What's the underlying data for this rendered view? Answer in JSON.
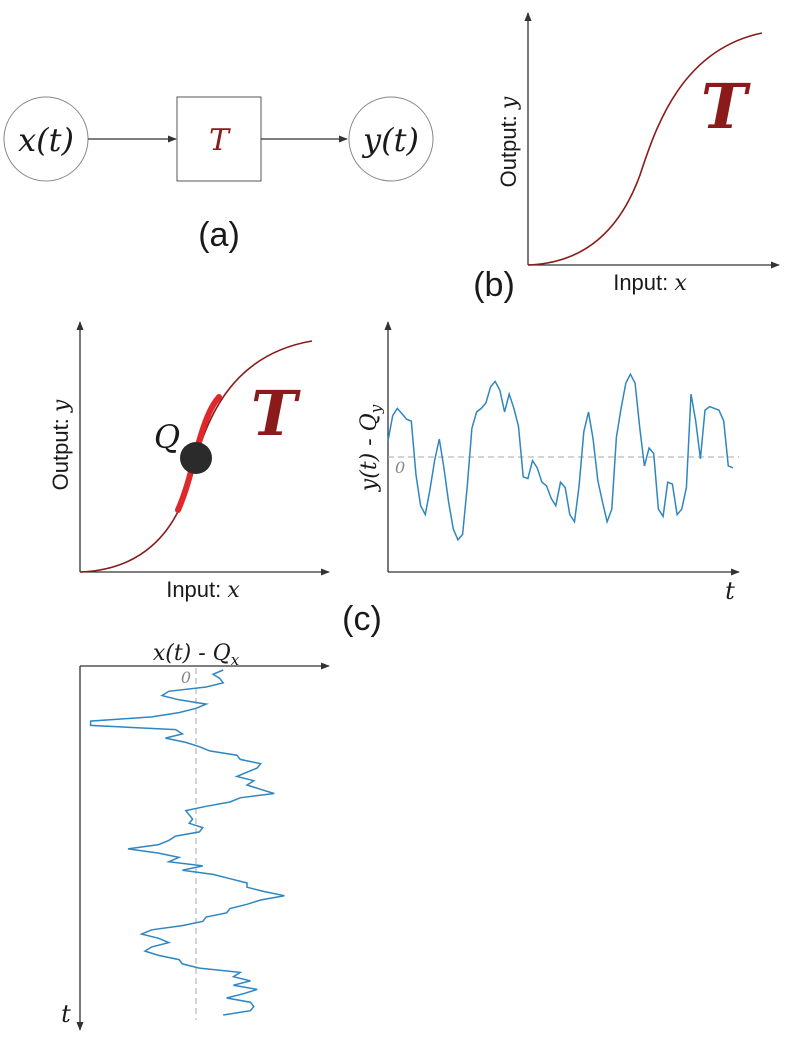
{
  "colors": {
    "curve": "#8b1a1a",
    "highlight": "#e0282c",
    "signal": "#2f86c0",
    "axis": "#333333",
    "node_stroke": "#888888",
    "point": "#2b2b2b",
    "dashed": "#a8a8a8"
  },
  "panel_a": {
    "input_node": "x(t)",
    "block": "T",
    "output_node": "y(t)",
    "caption": "(a)"
  },
  "panel_b": {
    "ylabel_prefix": "Output: ",
    "ylabel_var": "y",
    "xlabel_prefix": "Input: ",
    "xlabel_var": "x",
    "curve_label": "T",
    "caption": "(b)"
  },
  "panel_c": {
    "ylabel_prefix": "Output: ",
    "ylabel_var": "y",
    "xlabel_prefix": "Input: ",
    "xlabel_var": "x",
    "curve_label": "T",
    "point_label": "Q",
    "caption": "(c)",
    "output_signal": {
      "axis_label_main": "y(t) - Q",
      "axis_label_sub": "y",
      "zero_label": "0",
      "time_label": "t",
      "values": [
        0.9,
        2.3,
        2.7,
        2.4,
        2.1,
        2.0,
        -1.0,
        -2.7,
        -3.2,
        -1.8,
        -0.2,
        1.0,
        -0.6,
        -2.5,
        -4.0,
        -4.6,
        -4.3,
        -1.6,
        1.6,
        2.5,
        2.7,
        3.0,
        3.9,
        4.2,
        3.7,
        2.5,
        3.5,
        2.7,
        1.7,
        -1.1,
        -1.2,
        -0.2,
        -0.6,
        -1.4,
        -1.6,
        -2.3,
        -2.7,
        -1.4,
        -1.7,
        -3.2,
        -3.6,
        -1.6,
        1.4,
        2.5,
        1.0,
        -1.3,
        -2.5,
        -3.6,
        -2.9,
        1.1,
        2.7,
        4.1,
        4.6,
        4.1,
        1.6,
        -0.5,
        0.5,
        0.2,
        -2.9,
        -3.3,
        -1.4,
        -1.5,
        -3.2,
        -2.9,
        -1.7,
        3.5,
        2.0,
        -0.1,
        2.6,
        2.8,
        2.7,
        2.6,
        2.0,
        -0.5,
        -0.6
      ],
      "ylim": [
        -5.2,
        5.2
      ]
    },
    "input_signal": {
      "axis_label_main": "x(t) - Q",
      "axis_label_sub": "x",
      "zero_label": "0",
      "time_label": "t",
      "values": [
        0.8,
        0.5,
        0.7,
        0.8,
        0.3,
        -0.8,
        -1.0,
        -0.5,
        0.3,
        0.0,
        -0.5,
        -1.3,
        -3.1,
        -3.1,
        -0.6,
        -0.4,
        -0.9,
        -0.3,
        0.1,
        0.4,
        1.2,
        1.3,
        1.9,
        1.8,
        1.5,
        1.2,
        1.7,
        1.5,
        1.9,
        2.3,
        1.3,
        1.0,
        0.3,
        -0.3,
        -0.2,
        -0.1,
        -0.2,
        0.2,
        0.1,
        -0.6,
        -0.8,
        -1.1,
        -2.0,
        -1.1,
        -0.5,
        -0.8,
        0.2,
        -0.4,
        0.5,
        1.0,
        1.5,
        1.5,
        2.0,
        2.6,
        1.9,
        1.5,
        1.0,
        0.9,
        0.3,
        0.2,
        -0.4,
        -1.3,
        -1.6,
        -1.1,
        -0.8,
        -1.3,
        -1.5,
        -1.1,
        -0.5,
        -0.4,
        0.1,
        1.3,
        1.1,
        1.6,
        1.1,
        1.8,
        1.4,
        0.9,
        1.6,
        1.7,
        1.6,
        0.8
      ],
      "xlim": [
        -3.4,
        3.4
      ]
    }
  }
}
